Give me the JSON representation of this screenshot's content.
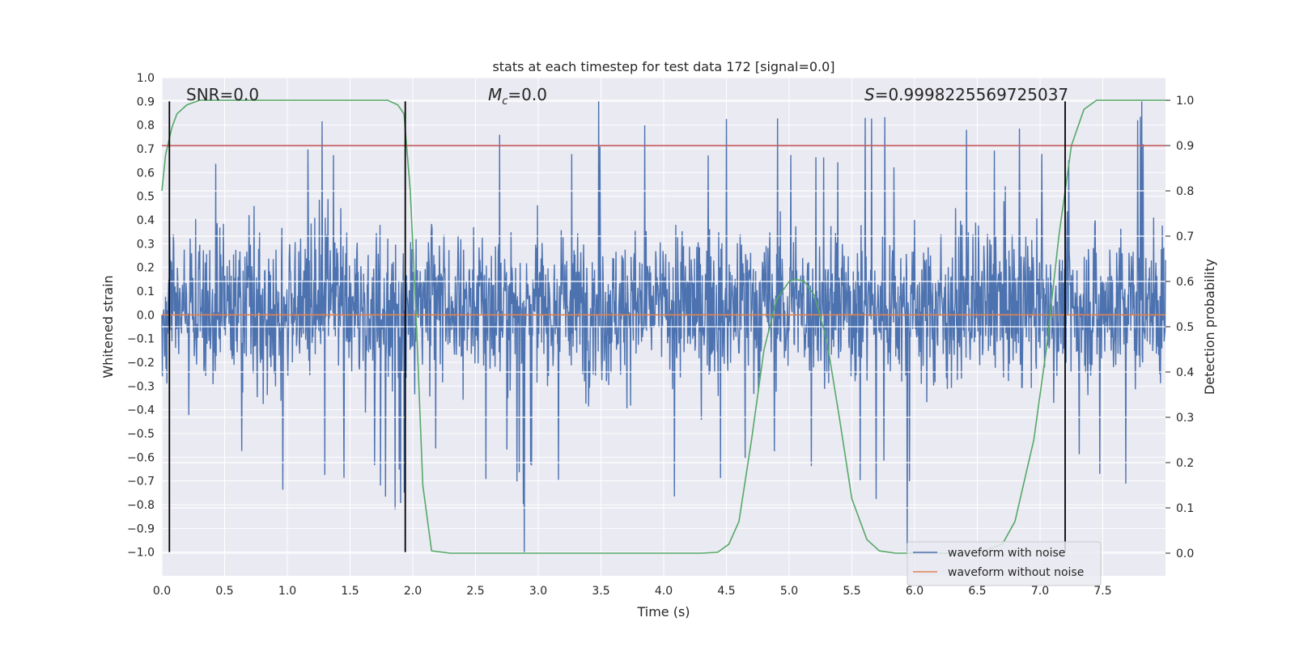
{
  "chart_data": {
    "type": "line",
    "title": "stats at each timestep for test data 172 [signal=0.0]",
    "xlabel": "Time (s)",
    "ylabel": "Whitened strain",
    "ylabel_right": "Detection probability",
    "xlim": [
      0.0,
      8.0
    ],
    "ylim": [
      -1.1,
      1.0
    ],
    "ylim_right": [
      -0.05,
      1.05
    ],
    "x_ticks": [
      "0.0",
      "0.5",
      "1.0",
      "1.5",
      "2.0",
      "2.5",
      "3.0",
      "3.5",
      "4.0",
      "4.5",
      "5.0",
      "5.5",
      "6.0",
      "6.5",
      "7.0",
      "7.5"
    ],
    "y_ticks": [
      "1.0",
      "0.9",
      "0.8",
      "0.7",
      "0.6",
      "0.5",
      "0.4",
      "0.3",
      "0.2",
      "0.1",
      "0.0",
      "−0.1",
      "−0.2",
      "−0.3",
      "−0.4",
      "−0.5",
      "−0.6",
      "−0.7",
      "−0.8",
      "−0.9",
      "−1.0"
    ],
    "y_ticks_right": [
      "0.0",
      "0.1",
      "0.2",
      "0.3",
      "0.4",
      "0.5",
      "0.6",
      "0.7",
      "0.8",
      "0.9",
      "1.0"
    ],
    "grid": true,
    "legend_position": "lower-right",
    "annotations": {
      "snr": "SNR=0.0",
      "mc_symbol": "M",
      "mc_sub": "c",
      "mc_value": "=0.0",
      "s_symbol": "S",
      "s_value": "=0.9998225569725037"
    },
    "series": [
      {
        "name": "waveform with noise",
        "color": "#4c72b0",
        "axis": "left",
        "envelope_core": [
          -0.43,
          0.5
        ],
        "envelope_peaks": [
          -1.0,
          0.9
        ],
        "notable_peaks": [
          {
            "x": 2.89,
            "y": -1.0
          },
          {
            "x": 3.48,
            "y": 0.9
          },
          {
            "x": 5.94,
            "y": -1.0
          },
          {
            "x": 7.81,
            "y": 0.9
          },
          {
            "x": 1.86,
            "y": -0.82
          }
        ]
      },
      {
        "name": "waveform without noise",
        "color": "#dd8452",
        "axis": "left",
        "x": [
          0.0,
          8.0
        ],
        "y": [
          0.0,
          0.0
        ]
      },
      {
        "name": "",
        "color": "#55a868",
        "axis": "right",
        "x": [
          0.0,
          0.03,
          0.08,
          0.12,
          0.2,
          0.3,
          0.4,
          0.6,
          1.0,
          1.5,
          1.8,
          1.88,
          1.93,
          1.98,
          2.03,
          2.08,
          2.15,
          2.3,
          3.0,
          4.0,
          4.3,
          4.43,
          4.52,
          4.6,
          4.7,
          4.8,
          4.9,
          5.0,
          5.05,
          5.12,
          5.2,
          5.3,
          5.4,
          5.5,
          5.62,
          5.72,
          5.85,
          6.0,
          6.5,
          6.7,
          6.8,
          6.95,
          7.05,
          7.15,
          7.25,
          7.35,
          7.45,
          7.6,
          8.0
        ],
        "y": [
          0.8,
          0.88,
          0.94,
          0.97,
          0.99,
          1.0,
          1.0,
          1.0,
          1.0,
          1.0,
          1.0,
          0.99,
          0.97,
          0.8,
          0.5,
          0.15,
          0.005,
          0.0,
          0.0,
          0.0,
          0.0,
          0.002,
          0.02,
          0.07,
          0.25,
          0.45,
          0.56,
          0.6,
          0.605,
          0.6,
          0.57,
          0.47,
          0.3,
          0.12,
          0.03,
          0.005,
          0.0,
          0.0,
          0.0,
          0.02,
          0.07,
          0.25,
          0.45,
          0.7,
          0.9,
          0.98,
          1.0,
          1.0,
          1.0
        ]
      },
      {
        "name": "",
        "color": "#c44e52",
        "axis": "right",
        "x": [
          0.0,
          8.0
        ],
        "y": [
          0.9,
          0.9
        ]
      }
    ],
    "vertical_markers": [
      0.06,
      1.94,
      7.2
    ],
    "vertical_marker_range": [
      -1.0,
      0.9
    ]
  }
}
